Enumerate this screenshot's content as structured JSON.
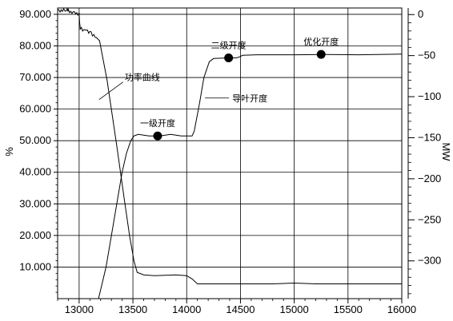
{
  "chart_data": {
    "type": "line",
    "title": "",
    "x_axis": {
      "range": [
        12800,
        16000
      ],
      "ticks": [
        13000,
        13500,
        14000,
        14500,
        15000,
        15500,
        16000
      ],
      "tick_labels": [
        "13000",
        "13500",
        "14000",
        "14500",
        "15000",
        "15500",
        "16000"
      ],
      "label": ""
    },
    "y_left": {
      "label": "%",
      "range": [
        0,
        92
      ],
      "ticks": [
        10,
        20,
        30,
        40,
        50,
        60,
        70,
        80,
        90
      ],
      "tick_labels": [
        "10.000",
        "20.000",
        "30.000",
        "40.000",
        "50.000",
        "60.000",
        "70.000",
        "80.000",
        "90.000"
      ]
    },
    "y_right": {
      "label": "MW",
      "range": [
        -346,
        8
      ],
      "ticks": [
        0,
        -50,
        -100,
        -150,
        -200,
        -250,
        -300
      ],
      "tick_labels": [
        "0",
        "−50",
        "−100",
        "−150",
        "−200",
        "−250",
        "−300"
      ]
    },
    "grid": true,
    "series": [
      {
        "name": "功率曲线",
        "axis": "right",
        "points": [
          [
            12800,
            5
          ],
          [
            12890,
            5
          ],
          [
            12900,
            4
          ],
          [
            13000,
            1
          ],
          [
            13005,
            -10
          ],
          [
            13010,
            -17
          ],
          [
            13100,
            -21
          ],
          [
            13160,
            -28
          ],
          [
            13190,
            -32
          ],
          [
            13260,
            -80
          ],
          [
            13350,
            -160
          ],
          [
            13420,
            -225
          ],
          [
            13470,
            -270
          ],
          [
            13510,
            -300
          ],
          [
            13540,
            -314
          ],
          [
            13600,
            -317
          ],
          [
            13700,
            -318
          ],
          [
            13900,
            -317
          ],
          [
            14000,
            -318
          ],
          [
            14050,
            -322
          ],
          [
            14100,
            -328
          ],
          [
            14300,
            -328
          ],
          [
            14500,
            -328
          ],
          [
            14800,
            -328
          ],
          [
            15000,
            -327
          ],
          [
            15200,
            -328
          ],
          [
            15500,
            -328
          ],
          [
            15800,
            -328
          ],
          [
            16000,
            -328
          ]
        ]
      },
      {
        "name": "导叶开度",
        "axis": "left",
        "points": [
          [
            13180,
            0
          ],
          [
            13250,
            10
          ],
          [
            13300,
            20
          ],
          [
            13350,
            30
          ],
          [
            13400,
            40
          ],
          [
            13440,
            46
          ],
          [
            13480,
            50
          ],
          [
            13510,
            51.5
          ],
          [
            13550,
            52
          ],
          [
            13650,
            51.5
          ],
          [
            13750,
            51.5
          ],
          [
            13850,
            52
          ],
          [
            13950,
            51.5
          ],
          [
            14050,
            51.5
          ],
          [
            14070,
            53
          ],
          [
            14120,
            62
          ],
          [
            14160,
            70
          ],
          [
            14210,
            75
          ],
          [
            14250,
            76
          ],
          [
            14380,
            76.2
          ],
          [
            14460,
            76.2
          ],
          [
            14490,
            76.5
          ],
          [
            14520,
            77
          ],
          [
            14650,
            77.2
          ],
          [
            15000,
            77.2
          ],
          [
            15300,
            77.3
          ],
          [
            15600,
            77.2
          ],
          [
            16000,
            77.4
          ]
        ]
      }
    ],
    "markers": [
      {
        "label": "一级开度",
        "x": 13730,
        "y": 51.5
      },
      {
        "label": "二级开度",
        "x": 14390,
        "y": 76.2
      },
      {
        "label": "优化开度",
        "x": 15250,
        "y": 77.3
      }
    ],
    "annotations": [
      {
        "label": "功率曲线",
        "target": [
          13200,
          63
        ]
      },
      {
        "label": "导叶开度",
        "target": [
          14170,
          63.5
        ]
      }
    ]
  }
}
